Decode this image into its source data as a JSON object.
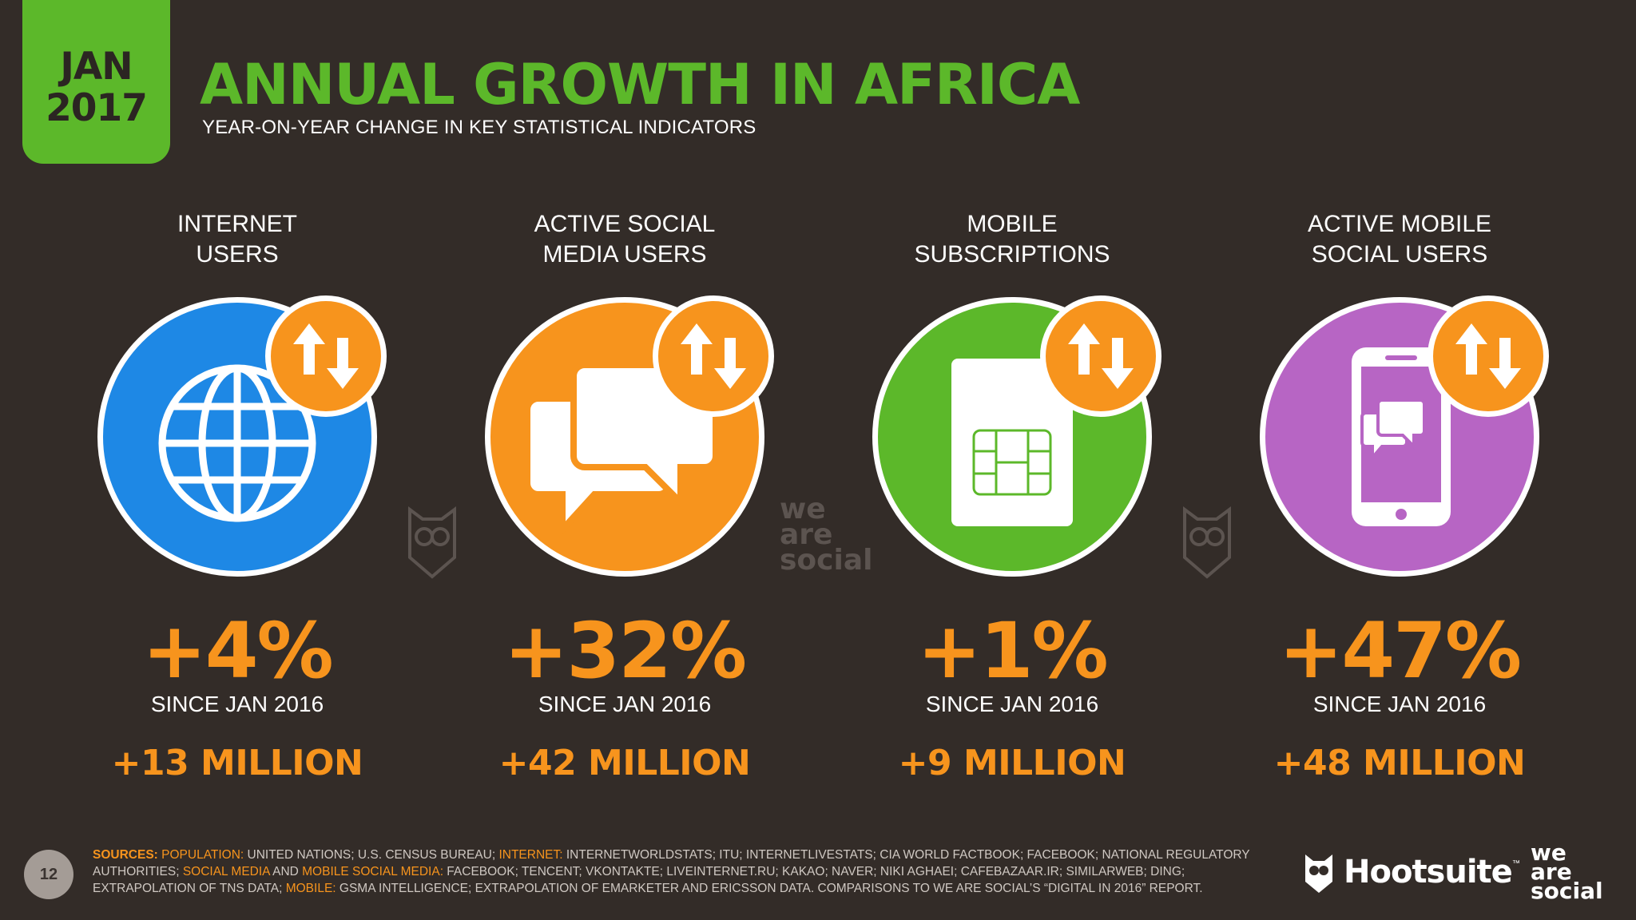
{
  "header": {
    "badge_month": "JAN",
    "badge_year": "2017",
    "title": "ANNUAL GROWTH IN AFRICA",
    "subtitle": "YEAR-ON-YEAR CHANGE IN KEY STATISTICAL INDICATORS"
  },
  "indicators": [
    {
      "label": "INTERNET\nUSERS",
      "percent": "+4%",
      "since": "SINCE JAN 2016",
      "change": "+13 MILLION",
      "color": "#1e88e5",
      "icon": "globe-icon"
    },
    {
      "label": "ACTIVE SOCIAL\nMEDIA USERS",
      "percent": "+32%",
      "since": "SINCE JAN 2016",
      "change": "+42 MILLION",
      "color": "#f7941d",
      "icon": "chat-bubbles-icon"
    },
    {
      "label": "MOBILE\nSUBSCRIPTIONS",
      "percent": "+1%",
      "since": "SINCE JAN 2016",
      "change": "+9 MILLION",
      "color": "#5cb82a",
      "icon": "sim-card-icon"
    },
    {
      "label": "ACTIVE MOBILE\nSOCIAL USERS",
      "percent": "+47%",
      "since": "SINCE JAN 2016",
      "change": "+48 MILLION",
      "color": "#b765c4",
      "icon": "mobile-chat-icon"
    }
  ],
  "badge_icon": "up-down-arrows-icon",
  "watermark": {
    "line1": "we",
    "line2": "are",
    "line3": "social"
  },
  "footer": {
    "page_number": "12",
    "sources": {
      "p1_label": "SOURCES:",
      "p2_label": "POPULATION:",
      "p2_text": " UNITED NATIONS; U.S. CENSUS BUREAU; ",
      "p3_label": "INTERNET:",
      "p3_text": " INTERNETWORLDSTATS; ITU; INTERNETLIVESTATS; CIA WORLD FACTBOOK; FACEBOOK; NATIONAL REGULATORY AUTHORITIES; ",
      "p4_label": "SOCIAL MEDIA",
      "p4_text": " AND ",
      "p5_label": "MOBILE SOCIAL MEDIA:",
      "p5_text": " FACEBOOK; TENCENT; VKONTAKTE; LIVEINTERNET.RU; KAKAO; NAVER; NIKI AGHAEI; CAFEBAZAAR.IR; SIMILARWEB; DING; EXTRAPOLATION OF TNS DATA; ",
      "p6_label": "MOBILE:",
      "p6_text": " GSMA INTELLIGENCE; EXTRAPOLATION OF EMARKETER AND ERICSSON DATA. COMPARISONS TO WE ARE SOCIAL’S “DIGITAL IN 2016” REPORT."
    },
    "hootsuite": "Hootsuite",
    "hootsuite_tm": "™",
    "was_line1": "we",
    "was_line2": "are",
    "was_line3": "social"
  },
  "colors": {
    "background": "#332c28",
    "accent_green": "#5cb82a",
    "accent_orange": "#f7941d"
  }
}
